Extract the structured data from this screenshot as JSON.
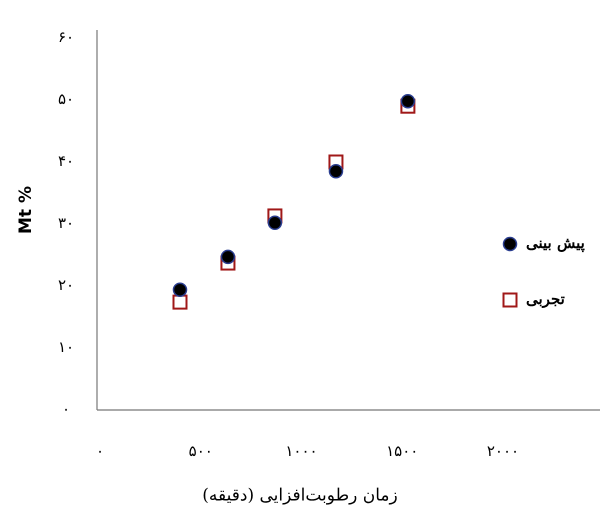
{
  "chart_data": {
    "type": "scatter",
    "xlabel": "زمان رطوبت‌افزایی (دقیقه)",
    "ylabel": "Mt %",
    "series": [
      {
        "name": "پیش بینی",
        "color": "#000000",
        "marker": "circle",
        "x": [
          397,
          635,
          868,
          1171,
          1528
        ],
        "values": [
          19.4,
          24.7,
          30.2,
          38.5,
          49.8
        ]
      },
      {
        "name": "تجربی",
        "color": "#a01818",
        "marker": "square",
        "x": [
          397,
          635,
          868,
          1171,
          1528
        ],
        "values": [
          17.4,
          23.7,
          31.3,
          40,
          49
        ]
      }
    ],
    "xlim": [
      0,
      2000
    ],
    "xticks": [
      {
        "value": 0,
        "label": "۰"
      },
      {
        "value": 500,
        "label": "۵۰۰"
      },
      {
        "value": 1000,
        "label": "۱۰۰۰"
      },
      {
        "value": 1500,
        "label": "۱۵۰۰"
      },
      {
        "value": 2000,
        "label": "۲۰۰۰"
      }
    ],
    "ylim": [
      0,
      60
    ],
    "yticks": [
      {
        "value": 0,
        "label": "۰"
      },
      {
        "value": 10,
        "label": "۱۰"
      },
      {
        "value": 20,
        "label": "۲۰"
      },
      {
        "value": 30,
        "label": "۳۰"
      },
      {
        "value": 40,
        "label": "۴۰"
      },
      {
        "value": 50,
        "label": "۵۰"
      },
      {
        "value": 60,
        "label": "۶۰"
      }
    ],
    "legend": "right"
  }
}
